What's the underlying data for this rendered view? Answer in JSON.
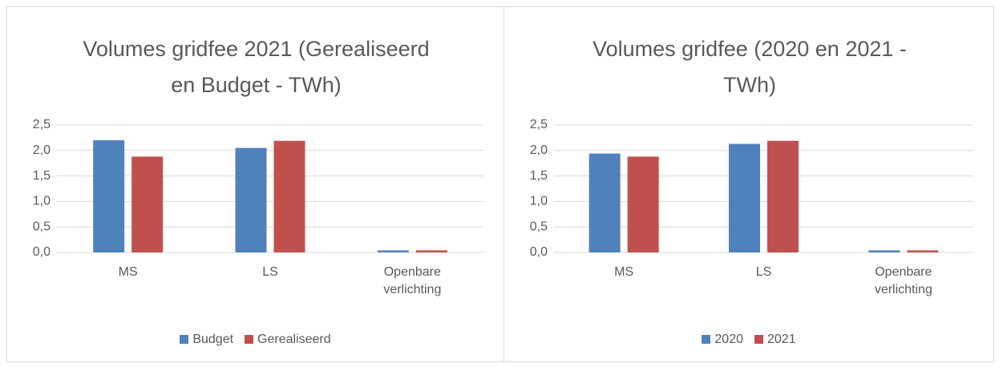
{
  "chart_data": [
    {
      "type": "bar",
      "title": "Volumes gridfee 2021 (Gerealiseerd en Budget - TWh)",
      "categories": [
        "MS",
        "LS",
        "Openbare verlichting"
      ],
      "series": [
        {
          "name": "Budget",
          "color": "#4f81bd",
          "values": [
            2.2,
            2.05,
            0.04
          ]
        },
        {
          "name": "Gerealiseerd",
          "color": "#c0504d",
          "values": [
            1.88,
            2.19,
            0.04
          ]
        }
      ],
      "ylim": [
        0,
        2.5
      ],
      "yticks": [
        {
          "value": 0,
          "label": "0,0"
        },
        {
          "value": 0.5,
          "label": "0,5"
        },
        {
          "value": 1,
          "label": "1,0"
        },
        {
          "value": 1.5,
          "label": "1,5"
        },
        {
          "value": 2,
          "label": "2,0"
        },
        {
          "value": 2.5,
          "label": "2,5"
        }
      ],
      "grid": true,
      "legend": "bottom"
    },
    {
      "type": "bar",
      "title": "Volumes gridfee (2020 en 2021 - TWh)",
      "categories": [
        "MS",
        "LS",
        "Openbare verlichting"
      ],
      "series": [
        {
          "name": "2020",
          "color": "#4f81bd",
          "values": [
            1.94,
            2.13,
            0.04
          ]
        },
        {
          "name": "2021",
          "color": "#c0504d",
          "values": [
            1.88,
            2.19,
            0.04
          ]
        }
      ],
      "ylim": [
        0,
        2.5
      ],
      "yticks": [
        {
          "value": 0,
          "label": "0,0"
        },
        {
          "value": 0.5,
          "label": "0,5"
        },
        {
          "value": 1,
          "label": "1,0"
        },
        {
          "value": 1.5,
          "label": "1,5"
        },
        {
          "value": 2,
          "label": "2,0"
        },
        {
          "value": 2.5,
          "label": "2,5"
        }
      ],
      "grid": true,
      "legend": "bottom"
    }
  ]
}
